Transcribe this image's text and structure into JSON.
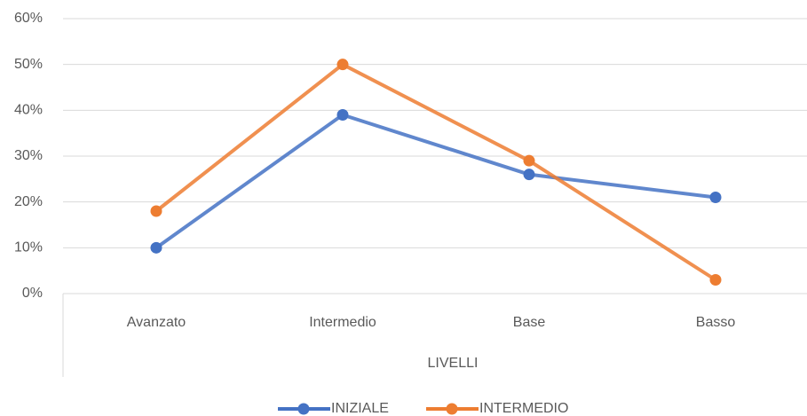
{
  "chart_data": {
    "type": "line",
    "x_label": "LIVELLI",
    "categories": [
      "Avanzato",
      "Intermedio",
      "Base",
      "Basso"
    ],
    "series": [
      {
        "name": "INIZIALE",
        "color": "#4472c4",
        "values": [
          10,
          39,
          26,
          21
        ]
      },
      {
        "name": "INTERMEDIO",
        "color": "#ed7d31",
        "values": [
          18,
          50,
          29,
          3
        ]
      }
    ],
    "ylim": [
      0,
      60
    ],
    "yticks": [
      {
        "value": 0,
        "label": "0%"
      },
      {
        "value": 10,
        "label": "10%"
      },
      {
        "value": 20,
        "label": "20%"
      },
      {
        "value": 30,
        "label": "30%"
      },
      {
        "value": 40,
        "label": "40%"
      },
      {
        "value": 50,
        "label": "50%"
      },
      {
        "value": 60,
        "label": "60%"
      }
    ],
    "grid": true,
    "legend": "bottom"
  }
}
